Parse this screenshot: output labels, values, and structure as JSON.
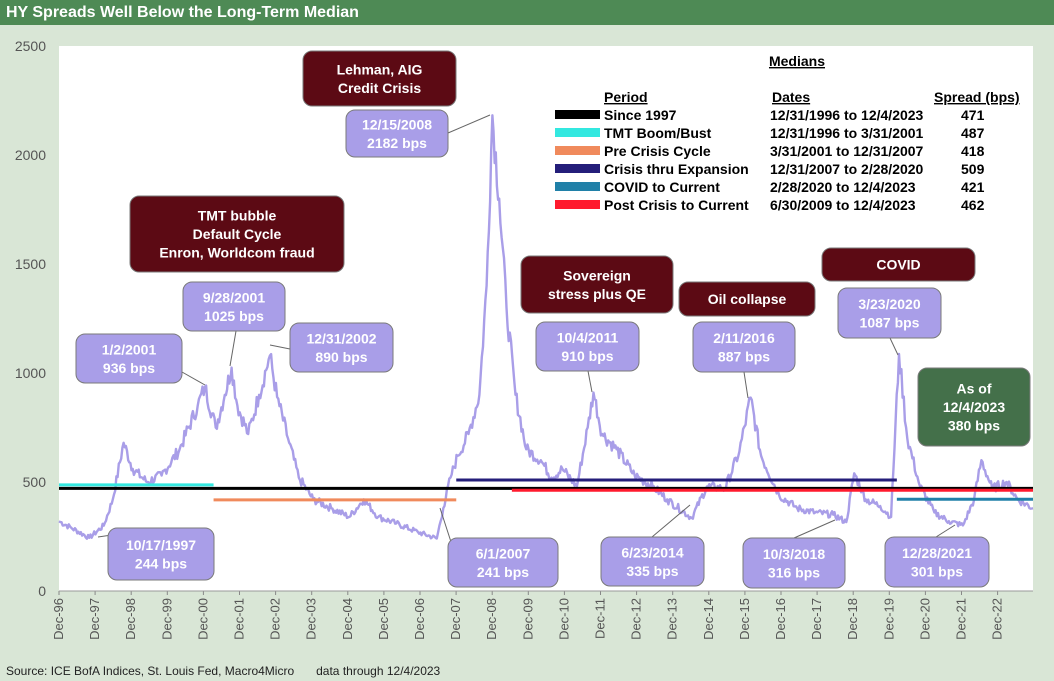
{
  "title": "HY Spreads Well Below the Long-Term Median",
  "source": "Source: ICE BofA Indices, St. Louis Fed, Macro4Micro",
  "data_through": "data through 12/4/2023",
  "colors": {
    "series": "#a99ee8",
    "callout_purple": "#a99ee8",
    "callout_maroon": "#5c0a14",
    "callout_green": "#44704a",
    "title_bg": "#4e8a55"
  },
  "chart_data": {
    "type": "line",
    "title": "HY Spreads Well Below the Long-Term Median",
    "ylim": [
      0,
      2500
    ],
    "y_ticks": [
      "0",
      "500",
      "1000",
      "1500",
      "2000",
      "2500"
    ],
    "x_ticks": [
      "Dec-96",
      "Dec-97",
      "Dec-98",
      "Dec-99",
      "Dec-00",
      "Dec-01",
      "Dec-02",
      "Dec-03",
      "Dec-04",
      "Dec-05",
      "Dec-06",
      "Dec-07",
      "Dec-08",
      "Dec-09",
      "Dec-10",
      "Dec-11",
      "Dec-12",
      "Dec-13",
      "Dec-14",
      "Dec-15",
      "Dec-16",
      "Dec-17",
      "Dec-18",
      "Dec-19",
      "Dec-20",
      "Dec-21",
      "Dec-22"
    ],
    "x_range": [
      1996.96,
      2023.93
    ],
    "grid": false,
    "series": [
      {
        "color": "#a99ee8",
        "points": [
          [
            1996.96,
            320
          ],
          [
            1997.3,
            290
          ],
          [
            1997.8,
            244
          ],
          [
            1998.2,
            300
          ],
          [
            1998.45,
            420
          ],
          [
            1998.75,
            680
          ],
          [
            1999.0,
            560
          ],
          [
            1999.4,
            500
          ],
          [
            1999.8,
            530
          ],
          [
            2000.3,
            650
          ],
          [
            2000.8,
            850
          ],
          [
            2001.0,
            936
          ],
          [
            2001.3,
            750
          ],
          [
            2001.55,
            900
          ],
          [
            2001.74,
            1025
          ],
          [
            2001.9,
            850
          ],
          [
            2002.2,
            720
          ],
          [
            2002.5,
            900
          ],
          [
            2002.8,
            1080
          ],
          [
            2003.0,
            890
          ],
          [
            2003.3,
            700
          ],
          [
            2003.6,
            520
          ],
          [
            2004.0,
            420
          ],
          [
            2004.5,
            380
          ],
          [
            2005.0,
            340
          ],
          [
            2005.4,
            420
          ],
          [
            2005.8,
            340
          ],
          [
            2006.3,
            310
          ],
          [
            2006.9,
            270
          ],
          [
            2007.42,
            241
          ],
          [
            2007.6,
            380
          ],
          [
            2007.8,
            520
          ],
          [
            2008.0,
            620
          ],
          [
            2008.3,
            720
          ],
          [
            2008.6,
            900
          ],
          [
            2008.8,
            1400
          ],
          [
            2008.96,
            2182
          ],
          [
            2009.15,
            1800
          ],
          [
            2009.35,
            1300
          ],
          [
            2009.6,
            900
          ],
          [
            2009.9,
            650
          ],
          [
            2010.3,
            600
          ],
          [
            2010.6,
            520
          ],
          [
            2010.9,
            560
          ],
          [
            2011.3,
            480
          ],
          [
            2011.6,
            750
          ],
          [
            2011.76,
            910
          ],
          [
            2012.0,
            720
          ],
          [
            2012.4,
            650
          ],
          [
            2012.9,
            530
          ],
          [
            2013.4,
            480
          ],
          [
            2013.8,
            420
          ],
          [
            2014.48,
            335
          ],
          [
            2014.9,
            480
          ],
          [
            2015.4,
            470
          ],
          [
            2015.8,
            640
          ],
          [
            2016.11,
            887
          ],
          [
            2016.4,
            620
          ],
          [
            2016.9,
            440
          ],
          [
            2017.4,
            380
          ],
          [
            2017.9,
            360
          ],
          [
            2018.4,
            350
          ],
          [
            2018.76,
            316
          ],
          [
            2018.98,
            540
          ],
          [
            2019.3,
            420
          ],
          [
            2019.7,
            390
          ],
          [
            2020.0,
            340
          ],
          [
            2020.22,
            1087
          ],
          [
            2020.45,
            700
          ],
          [
            2020.8,
            480
          ],
          [
            2021.2,
            360
          ],
          [
            2021.6,
            320
          ],
          [
            2021.99,
            301
          ],
          [
            2022.3,
            420
          ],
          [
            2022.5,
            600
          ],
          [
            2022.8,
            470
          ],
          [
            2023.2,
            500
          ],
          [
            2023.5,
            420
          ],
          [
            2023.93,
            380
          ]
        ]
      }
    ],
    "median_lines": [
      {
        "label": "Since 1997",
        "dates": "12/31/1996 to 12/4/2023",
        "spread": "471",
        "value": 471,
        "x": [
          1996.96,
          2023.93
        ],
        "color": "#000000"
      },
      {
        "label": "TMT Boom/Bust",
        "dates": "12/31/1996 to 3/31/2001",
        "spread": "487",
        "value": 487,
        "x": [
          1996.96,
          2001.24
        ],
        "color": "#33e8e0"
      },
      {
        "label": "Pre Crisis Cycle",
        "dates": "3/31/2001 to 12/31/2007",
        "spread": "418",
        "value": 418,
        "x": [
          2001.24,
          2007.96
        ],
        "color": "#f08a5c"
      },
      {
        "label": "Crisis thru Expansion",
        "dates": "12/31/2007 to 2/28/2020",
        "spread": "509",
        "value": 509,
        "x": [
          2007.96,
          2020.16
        ],
        "color": "#241e7a"
      },
      {
        "label": "COVID to Current",
        "dates": "2/28/2020 to 12/4/2023",
        "spread": "421",
        "value": 421,
        "x": [
          2020.16,
          2023.93
        ],
        "color": "#2080a8"
      },
      {
        "label": "Post Crisis to Current",
        "dates": "6/30/2009 to 12/4/2023",
        "spread": "462",
        "value": 462,
        "x": [
          2009.5,
          2023.93
        ],
        "color": "#ff1a2e"
      }
    ],
    "legend": {
      "title": "Medians",
      "col_period": "Period",
      "col_dates": "Dates",
      "col_spread": "Spread (bps)",
      "placement": "top-right"
    }
  },
  "annotations": {
    "data_labels": [
      {
        "date": "10/17/1997",
        "value": "244 bps"
      },
      {
        "date": "1/2/2001",
        "value": "936 bps"
      },
      {
        "date": "9/28/2001",
        "value": "1025 bps"
      },
      {
        "date": "12/31/2002",
        "value": "890 bps"
      },
      {
        "date": "12/15/2008",
        "value": "2182 bps"
      },
      {
        "date": "6/1/2007",
        "value": "241 bps"
      },
      {
        "date": "10/4/2011",
        "value": "910 bps"
      },
      {
        "date": "6/23/2014",
        "value": "335 bps"
      },
      {
        "date": "2/11/2016",
        "value": "887 bps"
      },
      {
        "date": "10/3/2018",
        "value": "316 bps"
      },
      {
        "date": "3/23/2020",
        "value": "1087 bps"
      },
      {
        "date": "12/28/2021",
        "value": "301 bps"
      }
    ],
    "events": [
      {
        "lines": [
          "Lehman, AIG",
          "Credit Crisis"
        ]
      },
      {
        "lines": [
          "TMT bubble",
          "Default Cycle",
          "Enron, Worldcom fraud"
        ]
      },
      {
        "lines": [
          "Sovereign",
          "stress plus QE"
        ]
      },
      {
        "lines": [
          "Oil collapse"
        ]
      },
      {
        "lines": [
          "COVID"
        ]
      }
    ],
    "asof": {
      "lines": [
        "As of",
        "12/4/2023",
        "380 bps"
      ]
    }
  }
}
